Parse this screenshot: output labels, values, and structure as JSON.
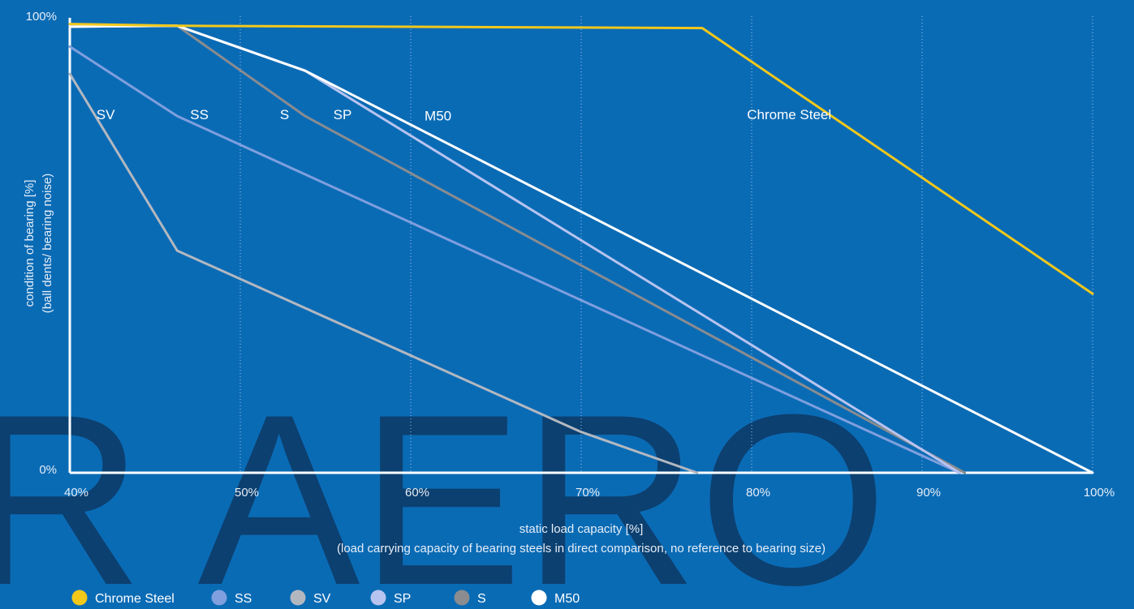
{
  "chart_data": {
    "type": "line",
    "title": "",
    "xlabel": "static load capacity [%]",
    "xlabel_sub": "(load carrying capacity of bearing steels in direct comparison, no reference to bearing size)",
    "ylabel": "condition of bearing [%]",
    "ylabel_sub": "(ball dents/ bearing noise)",
    "xlim": [
      40,
      100
    ],
    "ylim": [
      0,
      100
    ],
    "x_ticks": [
      {
        "value": 40,
        "label": "40%"
      },
      {
        "value": 50,
        "label": "50%"
      },
      {
        "value": 60,
        "label": "60%"
      },
      {
        "value": 70,
        "label": "70%"
      },
      {
        "value": 80,
        "label": "80%"
      },
      {
        "value": 90,
        "label": "90%"
      },
      {
        "value": 100,
        "label": "100%"
      }
    ],
    "y_ticks": [
      {
        "value": 0,
        "label": "0%"
      },
      {
        "value": 100,
        "label": "100%"
      }
    ],
    "grid": "vertical-dotted",
    "legend_position": "bottom-left",
    "watermark": "R AERO",
    "series": [
      {
        "name": "Chrome Steel",
        "color": "#f2c81b",
        "width": 3,
        "points": [
          [
            40,
            99
          ],
          [
            46.3,
            98.6
          ],
          [
            77.1,
            98.1
          ],
          [
            100,
            39.5
          ]
        ],
        "label": {
          "text": "Chrome Steel",
          "at": [
            82.2,
            78
          ]
        }
      },
      {
        "name": "SS",
        "color": "#7f9fde",
        "width": 3,
        "points": [
          [
            40,
            94
          ],
          [
            46.3,
            78.7
          ],
          [
            92.2,
            0
          ]
        ],
        "label": {
          "text": "SS",
          "at": [
            47.6,
            78
          ]
        }
      },
      {
        "name": "SV",
        "color": "#b3b8c0",
        "width": 3,
        "points": [
          [
            40,
            88
          ],
          [
            46.3,
            49
          ],
          [
            70,
            9
          ],
          [
            76.8,
            0
          ]
        ],
        "label": {
          "text": "SV",
          "at": [
            42.1,
            78
          ]
        }
      },
      {
        "name": "SP",
        "color": "#b7c4ef",
        "width": 3,
        "points": [
          [
            40,
            98.4
          ],
          [
            46.3,
            98.6
          ],
          [
            53.8,
            88.7
          ],
          [
            92.2,
            0
          ]
        ],
        "label": {
          "text": "SP",
          "at": [
            56,
            78
          ]
        }
      },
      {
        "name": "S",
        "color": "#8a8c8f",
        "width": 3,
        "points": [
          [
            40,
            98.4
          ],
          [
            46.3,
            98.6
          ],
          [
            53.8,
            78.7
          ],
          [
            92.5,
            0
          ]
        ],
        "label": {
          "text": "S",
          "at": [
            52.6,
            78
          ]
        }
      },
      {
        "name": "M50",
        "color": "#ffffff",
        "width": 3,
        "points": [
          [
            40,
            98.4
          ],
          [
            46.3,
            98.6
          ],
          [
            53.8,
            88.7
          ],
          [
            100,
            0
          ]
        ],
        "label": {
          "text": "M50",
          "at": [
            61.6,
            77.7
          ]
        }
      }
    ]
  }
}
